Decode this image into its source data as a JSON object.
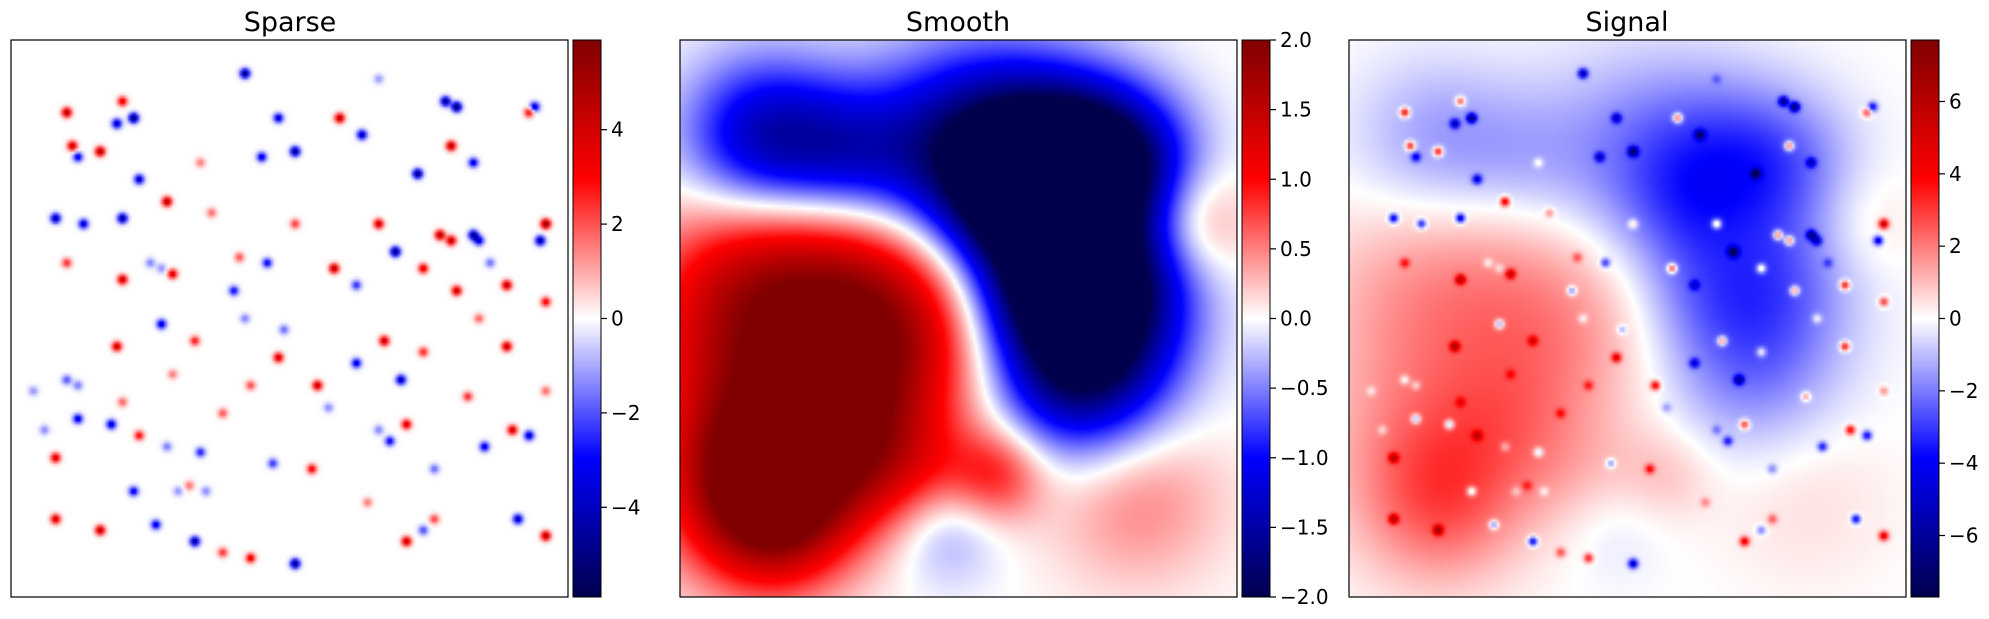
{
  "chart_data": [
    {
      "type": "heatmap",
      "title": "Sparse",
      "colormap": "seismic",
      "colors": [
        "#00004c",
        "#0000ff",
        "#ffffff",
        "#ff0000",
        "#800000"
      ],
      "clim": [
        -5.9,
        5.9
      ],
      "colorbar_ticks": [
        -4,
        -2,
        0,
        2,
        4
      ],
      "colorbar_tick_labels": [
        "−4",
        "−2",
        "0",
        "2",
        "4"
      ],
      "grid": false,
      "content": "sparse isolated point spikes on a zero background",
      "spikes": [
        {
          "x": 0.42,
          "y": 0.94,
          "v": -5.2
        },
        {
          "x": 0.66,
          "y": 0.93,
          "v": -1.2
        },
        {
          "x": 0.1,
          "y": 0.87,
          "v": 4.8
        },
        {
          "x": 0.2,
          "y": 0.89,
          "v": 3.6
        },
        {
          "x": 0.19,
          "y": 0.85,
          "v": -4.2
        },
        {
          "x": 0.22,
          "y": 0.86,
          "v": -5.5
        },
        {
          "x": 0.48,
          "y": 0.86,
          "v": -3.8
        },
        {
          "x": 0.59,
          "y": 0.86,
          "v": 4.6
        },
        {
          "x": 0.63,
          "y": 0.83,
          "v": -4.4
        },
        {
          "x": 0.78,
          "y": 0.89,
          "v": -5.0
        },
        {
          "x": 0.8,
          "y": 0.88,
          "v": -5.6
        },
        {
          "x": 0.93,
          "y": 0.87,
          "v": 3.2
        },
        {
          "x": 0.94,
          "y": 0.88,
          "v": -4.0
        },
        {
          "x": 0.11,
          "y": 0.81,
          "v": 4.4
        },
        {
          "x": 0.12,
          "y": 0.79,
          "v": -3.4
        },
        {
          "x": 0.16,
          "y": 0.8,
          "v": 4.9
        },
        {
          "x": 0.34,
          "y": 0.78,
          "v": 1.6
        },
        {
          "x": 0.45,
          "y": 0.79,
          "v": -3.6
        },
        {
          "x": 0.51,
          "y": 0.8,
          "v": -5.1
        },
        {
          "x": 0.79,
          "y": 0.81,
          "v": 4.7
        },
        {
          "x": 0.83,
          "y": 0.78,
          "v": -3.5
        },
        {
          "x": 0.73,
          "y": 0.76,
          "v": -5.3
        },
        {
          "x": 0.23,
          "y": 0.75,
          "v": -4.1
        },
        {
          "x": 0.28,
          "y": 0.71,
          "v": 4.8
        },
        {
          "x": 0.36,
          "y": 0.69,
          "v": 1.8
        },
        {
          "x": 0.08,
          "y": 0.68,
          "v": -4.7
        },
        {
          "x": 0.13,
          "y": 0.67,
          "v": -3.9
        },
        {
          "x": 0.2,
          "y": 0.68,
          "v": -4.9
        },
        {
          "x": 0.51,
          "y": 0.67,
          "v": 2.4
        },
        {
          "x": 0.66,
          "y": 0.67,
          "v": 4.3
        },
        {
          "x": 0.69,
          "y": 0.62,
          "v": -5.4
        },
        {
          "x": 0.77,
          "y": 0.65,
          "v": 4.9
        },
        {
          "x": 0.79,
          "y": 0.64,
          "v": 4.5
        },
        {
          "x": 0.83,
          "y": 0.65,
          "v": -4.8
        },
        {
          "x": 0.84,
          "y": 0.64,
          "v": -3.7
        },
        {
          "x": 0.96,
          "y": 0.67,
          "v": 5.6
        },
        {
          "x": 0.95,
          "y": 0.64,
          "v": -4.6
        },
        {
          "x": 0.1,
          "y": 0.6,
          "v": 2.6
        },
        {
          "x": 0.25,
          "y": 0.6,
          "v": -1.5
        },
        {
          "x": 0.27,
          "y": 0.59,
          "v": -1.3
        },
        {
          "x": 0.29,
          "y": 0.58,
          "v": 3.9
        },
        {
          "x": 0.41,
          "y": 0.61,
          "v": 2.1
        },
        {
          "x": 0.46,
          "y": 0.6,
          "v": -3.2
        },
        {
          "x": 0.58,
          "y": 0.59,
          "v": 4.7
        },
        {
          "x": 0.74,
          "y": 0.59,
          "v": 3.8
        },
        {
          "x": 0.86,
          "y": 0.6,
          "v": -1.7
        },
        {
          "x": 0.2,
          "y": 0.57,
          "v": 4.4
        },
        {
          "x": 0.4,
          "y": 0.55,
          "v": -3.1
        },
        {
          "x": 0.62,
          "y": 0.56,
          "v": -2.6
        },
        {
          "x": 0.8,
          "y": 0.55,
          "v": 4.3
        },
        {
          "x": 0.89,
          "y": 0.56,
          "v": 4.6
        },
        {
          "x": 0.96,
          "y": 0.53,
          "v": 3.3
        },
        {
          "x": 0.27,
          "y": 0.49,
          "v": -3.8
        },
        {
          "x": 0.49,
          "y": 0.48,
          "v": -1.8
        },
        {
          "x": 0.48,
          "y": 0.43,
          "v": 4.1
        },
        {
          "x": 0.62,
          "y": 0.42,
          "v": -3.6
        },
        {
          "x": 0.74,
          "y": 0.44,
          "v": 2.7
        },
        {
          "x": 0.84,
          "y": 0.5,
          "v": 1.9
        },
        {
          "x": 0.19,
          "y": 0.45,
          "v": 4.2
        },
        {
          "x": 0.33,
          "y": 0.46,
          "v": 2.9
        },
        {
          "x": 0.67,
          "y": 0.46,
          "v": 4.4
        },
        {
          "x": 0.89,
          "y": 0.45,
          "v": 4.5
        },
        {
          "x": 0.1,
          "y": 0.39,
          "v": -2.1
        },
        {
          "x": 0.12,
          "y": 0.38,
          "v": -1.6
        },
        {
          "x": 0.43,
          "y": 0.38,
          "v": 2.2
        },
        {
          "x": 0.55,
          "y": 0.38,
          "v": 4.3
        },
        {
          "x": 0.7,
          "y": 0.39,
          "v": -4.4
        },
        {
          "x": 0.82,
          "y": 0.36,
          "v": 2.6
        },
        {
          "x": 0.57,
          "y": 0.34,
          "v": -1.4
        },
        {
          "x": 0.12,
          "y": 0.32,
          "v": -3.7
        },
        {
          "x": 0.18,
          "y": 0.31,
          "v": -3.9
        },
        {
          "x": 0.23,
          "y": 0.29,
          "v": 3.1
        },
        {
          "x": 0.71,
          "y": 0.31,
          "v": 4.0
        },
        {
          "x": 0.9,
          "y": 0.3,
          "v": 4.2
        },
        {
          "x": 0.06,
          "y": 0.3,
          "v": -1.4
        },
        {
          "x": 0.34,
          "y": 0.26,
          "v": -2.8
        },
        {
          "x": 0.47,
          "y": 0.24,
          "v": -2.5
        },
        {
          "x": 0.54,
          "y": 0.23,
          "v": 3.3
        },
        {
          "x": 0.66,
          "y": 0.3,
          "v": -1.5
        },
        {
          "x": 0.68,
          "y": 0.28,
          "v": -3.2
        },
        {
          "x": 0.85,
          "y": 0.27,
          "v": -3.6
        },
        {
          "x": 0.93,
          "y": 0.29,
          "v": -4.0
        },
        {
          "x": 0.08,
          "y": 0.25,
          "v": 4.1
        },
        {
          "x": 0.22,
          "y": 0.19,
          "v": -3.4
        },
        {
          "x": 0.3,
          "y": 0.19,
          "v": -1.3
        },
        {
          "x": 0.32,
          "y": 0.2,
          "v": 1.7
        },
        {
          "x": 0.35,
          "y": 0.19,
          "v": -1.4
        },
        {
          "x": 0.64,
          "y": 0.17,
          "v": 1.6
        },
        {
          "x": 0.76,
          "y": 0.14,
          "v": 2.3
        },
        {
          "x": 0.91,
          "y": 0.14,
          "v": -4.3
        },
        {
          "x": 0.08,
          "y": 0.14,
          "v": 4.2
        },
        {
          "x": 0.16,
          "y": 0.12,
          "v": 4.6
        },
        {
          "x": 0.26,
          "y": 0.13,
          "v": -3.5
        },
        {
          "x": 0.33,
          "y": 0.1,
          "v": -4.8
        },
        {
          "x": 0.43,
          "y": 0.07,
          "v": 3.5
        },
        {
          "x": 0.51,
          "y": 0.06,
          "v": -5.2
        },
        {
          "x": 0.71,
          "y": 0.1,
          "v": 4.4
        },
        {
          "x": 0.74,
          "y": 0.12,
          "v": -2.2
        },
        {
          "x": 0.96,
          "y": 0.11,
          "v": 4.7
        },
        {
          "x": 0.2,
          "y": 0.35,
          "v": 1.9
        },
        {
          "x": 0.38,
          "y": 0.33,
          "v": 2.1
        },
        {
          "x": 0.28,
          "y": 0.27,
          "v": -1.6
        },
        {
          "x": 0.76,
          "y": 0.23,
          "v": -1.8
        },
        {
          "x": 0.96,
          "y": 0.37,
          "v": 1.8
        },
        {
          "x": 0.04,
          "y": 0.37,
          "v": -1.3
        },
        {
          "x": 0.38,
          "y": 0.08,
          "v": 2.5
        },
        {
          "x": 0.29,
          "y": 0.4,
          "v": 1.6
        },
        {
          "x": 0.42,
          "y": 0.5,
          "v": -1.5
        }
      ]
    },
    {
      "type": "heatmap",
      "title": "Smooth",
      "colormap": "seismic",
      "colors": [
        "#00004c",
        "#0000ff",
        "#ffffff",
        "#ff0000",
        "#800000"
      ],
      "clim": [
        -2.0,
        2.0
      ],
      "colorbar_ticks": [
        -2.0,
        -1.5,
        -1.0,
        -0.5,
        0.0,
        0.5,
        1.0,
        1.5,
        2.0
      ],
      "colorbar_tick_labels": [
        "−2.0",
        "−1.5",
        "−1.0",
        "−0.5",
        "0.0",
        "0.5",
        "1.0",
        "1.5",
        "2.0"
      ],
      "grid": false,
      "content": "smooth field: strong negative region across upper right, strong positive region on lower left, weaker lobes near the bottom",
      "blobs": [
        {
          "x": 0.15,
          "y": 0.22,
          "a": 2.1,
          "s": 0.12
        },
        {
          "x": 0.35,
          "y": 0.5,
          "a": 1.9,
          "s": 0.15
        },
        {
          "x": 0.12,
          "y": 0.55,
          "a": 1.1,
          "s": 0.13
        },
        {
          "x": 0.3,
          "y": 0.3,
          "a": 0.9,
          "s": 0.1
        },
        {
          "x": 0.17,
          "y": 0.14,
          "a": 0.9,
          "s": 0.09
        },
        {
          "x": 0.43,
          "y": 0.2,
          "a": 0.6,
          "s": 0.08
        },
        {
          "x": 0.57,
          "y": 0.22,
          "a": 0.8,
          "s": 0.06
        },
        {
          "x": 0.82,
          "y": 0.18,
          "a": 0.5,
          "s": 0.11
        },
        {
          "x": 0.47,
          "y": 0.13,
          "a": -0.6,
          "s": 0.07
        },
        {
          "x": 0.15,
          "y": 0.82,
          "a": -1.4,
          "s": 0.1
        },
        {
          "x": 0.3,
          "y": 0.79,
          "a": -0.9,
          "s": 0.09
        },
        {
          "x": 0.53,
          "y": 0.78,
          "a": -2.1,
          "s": 0.13
        },
        {
          "x": 0.68,
          "y": 0.79,
          "a": -1.7,
          "s": 0.1
        },
        {
          "x": 0.79,
          "y": 0.78,
          "a": -1.5,
          "s": 0.09
        },
        {
          "x": 0.6,
          "y": 0.68,
          "a": -1.0,
          "s": 0.08
        },
        {
          "x": 0.77,
          "y": 0.58,
          "a": -1.9,
          "s": 0.1
        },
        {
          "x": 0.72,
          "y": 0.42,
          "a": -2.1,
          "s": 0.11
        },
        {
          "x": 0.62,
          "y": 0.54,
          "a": -1.0,
          "s": 0.08
        },
        {
          "x": 0.06,
          "y": 0.4,
          "a": 0.4,
          "s": 0.12
        },
        {
          "x": 0.92,
          "y": 0.67,
          "a": 0.6,
          "s": 0.07
        }
      ]
    },
    {
      "type": "heatmap",
      "title": "Signal",
      "colormap": "seismic",
      "colors": [
        "#00004c",
        "#0000ff",
        "#ffffff",
        "#ff0000",
        "#800000"
      ],
      "clim": [
        -7.7,
        7.7
      ],
      "colorbar_ticks": [
        -6,
        -4,
        -2,
        0,
        2,
        4,
        6
      ],
      "colorbar_tick_labels": [
        "−6",
        "−4",
        "−2",
        "0",
        "2",
        "4",
        "6"
      ],
      "grid": false,
      "content": "sum of the Sparse spikes and the Smooth field"
    }
  ]
}
